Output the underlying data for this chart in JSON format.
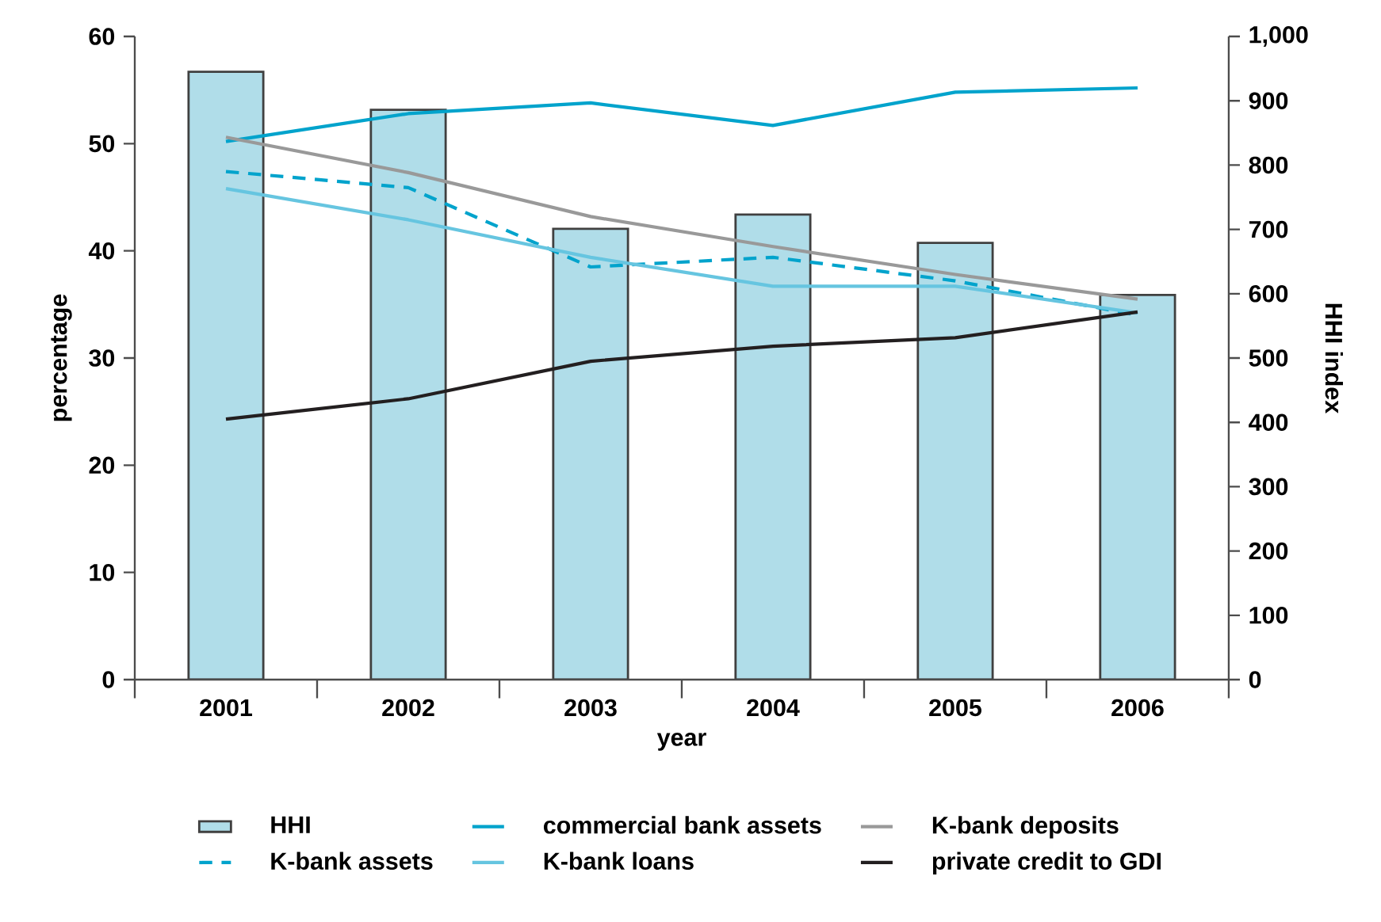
{
  "chart_data": {
    "type": "line",
    "xlabel": "year",
    "ylabel": "percentage",
    "y2label": "HHI index",
    "categories": [
      "2001",
      "2002",
      "2003",
      "2004",
      "2005",
      "2006"
    ],
    "ylim": [
      0,
      60
    ],
    "yticks": [
      0,
      10,
      20,
      30,
      40,
      50,
      60
    ],
    "y2lim": [
      0,
      1000
    ],
    "y2ticks": [
      0,
      100,
      200,
      300,
      400,
      500,
      600,
      700,
      800,
      900,
      {
        "value": 1000,
        "label": "1,000"
      }
    ],
    "series": [
      {
        "name": "HHI",
        "type": "bar",
        "axis": "y2",
        "color": "#b0dde9",
        "values": [
          945,
          886,
          701,
          723,
          679,
          598
        ]
      },
      {
        "name": "commercial bank assets",
        "color": "#00a3cc",
        "values": [
          50.2,
          52.8,
          53.8,
          51.7,
          54.8,
          55.2
        ]
      },
      {
        "name": "K-bank deposits",
        "color": "#999999",
        "values": [
          50.6,
          47.3,
          43.2,
          40.4,
          37.8,
          35.5
        ]
      },
      {
        "name": "K-bank assets",
        "color": "#00a3cc",
        "line_style": "dashed",
        "values": [
          47.4,
          45.9,
          38.5,
          39.4,
          37.2,
          34.0
        ]
      },
      {
        "name": "K-bank loans",
        "color": "#66c5e0",
        "values": [
          45.8,
          42.9,
          39.4,
          36.7,
          36.7,
          34.2
        ]
      },
      {
        "name": "private credit to GDI",
        "color": "#231f20",
        "values": [
          24.3,
          26.2,
          29.7,
          31.1,
          31.9,
          34.3
        ]
      }
    ],
    "grid": false,
    "legend": "bottom",
    "marker": "none"
  }
}
